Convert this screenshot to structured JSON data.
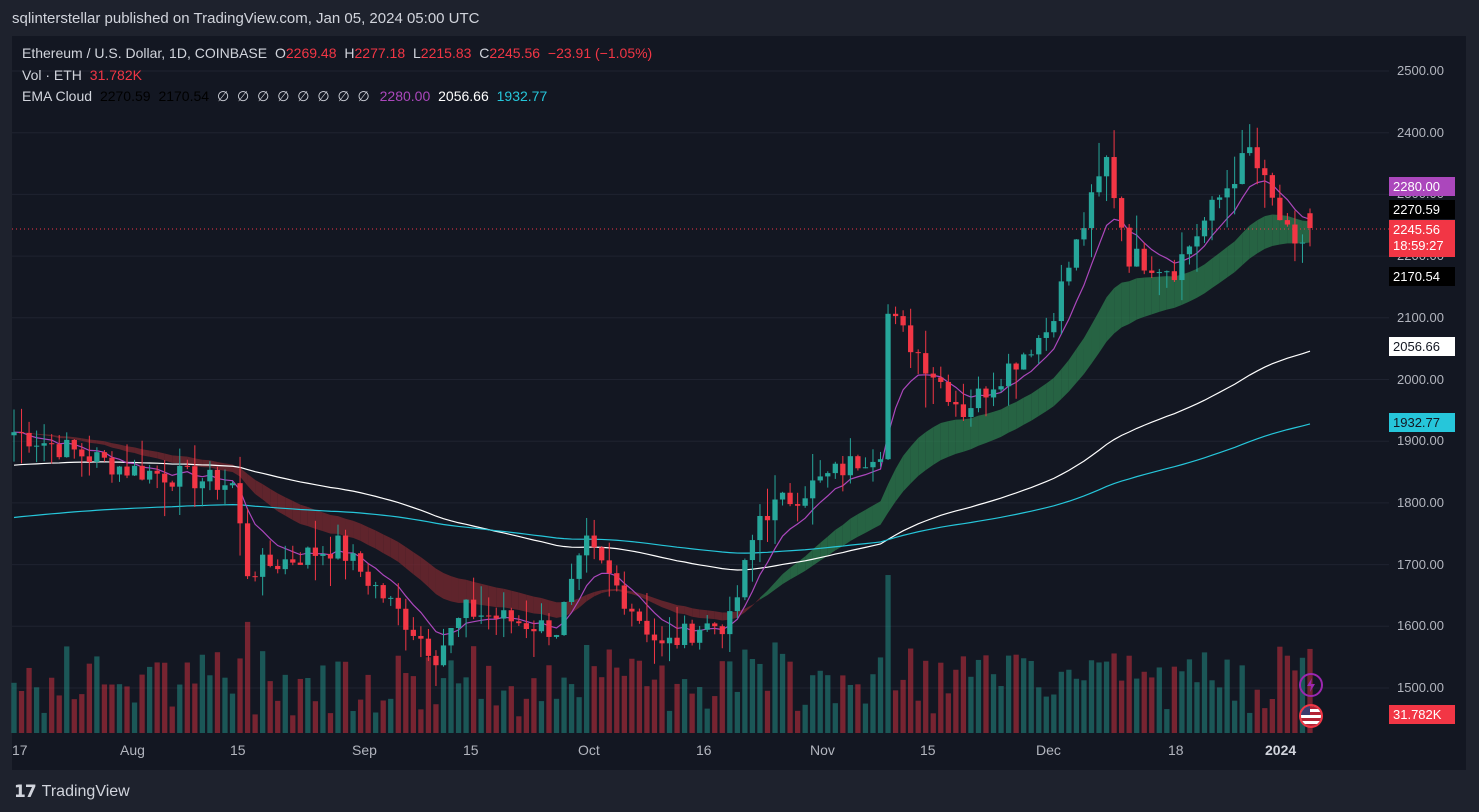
{
  "header": {
    "publisher_line": "sqlinterstellar published on TradingView.com, Jan 05, 2024 05:00 UTC"
  },
  "legend": {
    "symbol": "Ethereum / U.S. Dollar, 1D, COINBASE",
    "o_label": "O",
    "o": "2269.48",
    "h_label": "H",
    "h": "2277.18",
    "l_label": "L",
    "l": "2215.83",
    "c_label": "C",
    "c": "2245.56",
    "change": "−23.91 (−1.05%)",
    "vol_label": "Vol · ETH",
    "vol_value": "31.782K",
    "ema_label": "EMA Cloud",
    "ema_v1": "2270.59",
    "ema_v2": "2170.54",
    "ema_empty": "∅ ∅ ∅ ∅ ∅ ∅ ∅ ∅",
    "ema_v3": "2280.00",
    "ema_v4": "2056.66",
    "ema_v5": "1932.77"
  },
  "price_tags": {
    "ema_fast": "2280.00",
    "ema_cloud_top": "2270.59",
    "last_price": "2245.56",
    "countdown": "18:59:27",
    "ema_cloud_bottom": "2170.54",
    "ema_mid": "2056.66",
    "ema_slow": "1932.77",
    "volume": "31.782K"
  },
  "colors": {
    "up": "#26a69a",
    "down": "#f23645",
    "ema_fast": "#ab47bc",
    "ema_mid": "#ffffff",
    "ema_slow": "#26c6da",
    "cloud_bull": "#2e7d4f",
    "cloud_bear": "#7a2a30",
    "background": "#131722"
  },
  "icons": {
    "alert": "lightning-icon",
    "flag": "us-flag-icon",
    "logo": "tradingview-logo-icon"
  },
  "footer": {
    "brand": "TradingView"
  },
  "chart_data": {
    "type": "candlestick",
    "title": "Ethereum / U.S. Dollar, 1D, COINBASE",
    "y_axis": {
      "ticks": [
        "2500.00",
        "2400.00",
        "2300.00",
        "2200.00",
        "2100.00",
        "2000.00",
        "1900.00",
        "1800.00",
        "1700.00",
        "1600.00",
        "1500.00"
      ],
      "range": [
        1470,
        2530
      ]
    },
    "x_axis": {
      "ticks": [
        "17",
        "Aug",
        "15",
        "Sep",
        "15",
        "Oct",
        "16",
        "Nov",
        "15",
        "Dec",
        "18",
        "2024"
      ]
    },
    "ohlc_anchors": [
      {
        "date": "2023-07-17",
        "close": 1915
      },
      {
        "date": "2023-08-01",
        "close": 1855
      },
      {
        "date": "2023-08-15",
        "close": 1830
      },
      {
        "date": "2023-08-17",
        "close": 1690
      },
      {
        "date": "2023-08-29",
        "close": 1730
      },
      {
        "date": "2023-09-11",
        "close": 1555
      },
      {
        "date": "2023-09-15",
        "close": 1625
      },
      {
        "date": "2023-09-27",
        "close": 1595
      },
      {
        "date": "2023-10-01",
        "close": 1730
      },
      {
        "date": "2023-10-11",
        "close": 1565
      },
      {
        "date": "2023-10-16",
        "close": 1600
      },
      {
        "date": "2023-10-20",
        "close": 1605
      },
      {
        "date": "2023-10-24",
        "close": 1780
      },
      {
        "date": "2023-11-09",
        "close": 1890
      },
      {
        "date": "2023-11-10",
        "close": 2105
      },
      {
        "date": "2023-11-20",
        "close": 1950
      },
      {
        "date": "2023-12-01",
        "close": 2080
      },
      {
        "date": "2023-12-09",
        "close": 2355
      },
      {
        "date": "2023-12-12",
        "close": 2200
      },
      {
        "date": "2023-12-18",
        "close": 2180
      },
      {
        "date": "2023-12-28",
        "close": 2370
      },
      {
        "date": "2024-01-03",
        "close": 2205
      },
      {
        "date": "2024-01-05",
        "close": 2245.56
      }
    ],
    "last_candle": {
      "open": 2269.48,
      "high": 2277.18,
      "low": 2215.83,
      "close": 2245.56
    },
    "ema_lines": [
      {
        "name": "EMA cloud top",
        "last": 2270.59
      },
      {
        "name": "EMA cloud bottom",
        "last": 2170.54
      },
      {
        "last": 2280.0
      },
      {
        "last": 2056.66
      },
      {
        "last": 1932.77
      }
    ],
    "volume_last": "31.782K"
  }
}
